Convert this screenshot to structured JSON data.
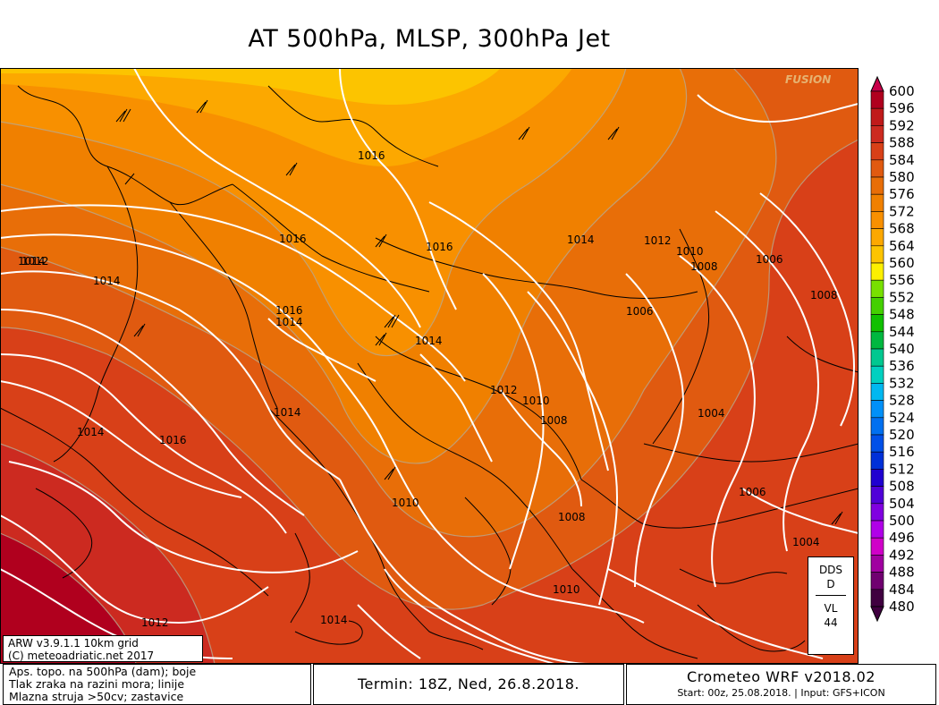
{
  "title": "AT 500hPa, MLSP, 300hPa Jet",
  "watermark": "FUSION",
  "info_box": {
    "line1": "ARW v3.9.1.1 10km grid",
    "line2": "(C) meteoadriatic.net 2017"
  },
  "dds_box": {
    "line1": "DDS",
    "line2": "D",
    "line3": "VL",
    "line4": "44"
  },
  "footer": {
    "legend_line1": "Aps. topo. na 500hPa (dam); boje",
    "legend_line2": "Tlak zraka na razini mora; linije",
    "legend_line3": "Mlazna struja >50cv; zastavice",
    "termin": "Termin: 18Z, Ned, 26.8.2018.",
    "model": "Crometeo WRF v2018.02",
    "start": "Start: 00z, 25.08.2018. | Input: GFS+ICON"
  },
  "colorbar": {
    "unit": "dam",
    "levels": [
      "600",
      "596",
      "592",
      "588",
      "584",
      "580",
      "576",
      "572",
      "568",
      "564",
      "560",
      "556",
      "552",
      "548",
      "544",
      "540",
      "536",
      "532",
      "528",
      "524",
      "520",
      "516",
      "512",
      "508",
      "504",
      "500",
      "496",
      "492",
      "488",
      "484",
      "480"
    ],
    "colors": [
      "#c8004a",
      "#b0001e",
      "#c01a1a",
      "#cc2a20",
      "#d84018",
      "#e05a10",
      "#e86e08",
      "#f08000",
      "#f89000",
      "#fca800",
      "#fcc400",
      "#fcf000",
      "#78e000",
      "#44d000",
      "#10c000",
      "#00b840",
      "#00c890",
      "#00d0c0",
      "#00b8f0",
      "#0090f8",
      "#0070f0",
      "#0050e8",
      "#0030d8",
      "#2000d0",
      "#5000d8",
      "#8000e0",
      "#b000e8",
      "#d000c8",
      "#a000a0",
      "#700070",
      "#400040"
    ]
  },
  "isobars": [
    {
      "label": "1016"
    },
    {
      "label": "1016"
    },
    {
      "label": "1016"
    },
    {
      "label": "1014"
    },
    {
      "label": "1012"
    },
    {
      "label": "1010"
    },
    {
      "label": "1008"
    },
    {
      "label": "1006"
    },
    {
      "label": "1008"
    },
    {
      "label": "1012"
    },
    {
      "label": "1014"
    },
    {
      "label": "1014"
    },
    {
      "label": "1016"
    },
    {
      "label": "1014"
    },
    {
      "label": "1006"
    },
    {
      "label": "1014"
    },
    {
      "label": "1012"
    },
    {
      "label": "1010"
    },
    {
      "label": "1008"
    },
    {
      "label": "1004"
    },
    {
      "label": "1014"
    },
    {
      "label": "1014"
    },
    {
      "label": "1016"
    },
    {
      "label": "1010"
    },
    {
      "label": "1008"
    },
    {
      "label": "1006"
    },
    {
      "label": "1004"
    },
    {
      "label": "1010"
    },
    {
      "label": "1012"
    },
    {
      "label": "1014"
    }
  ]
}
